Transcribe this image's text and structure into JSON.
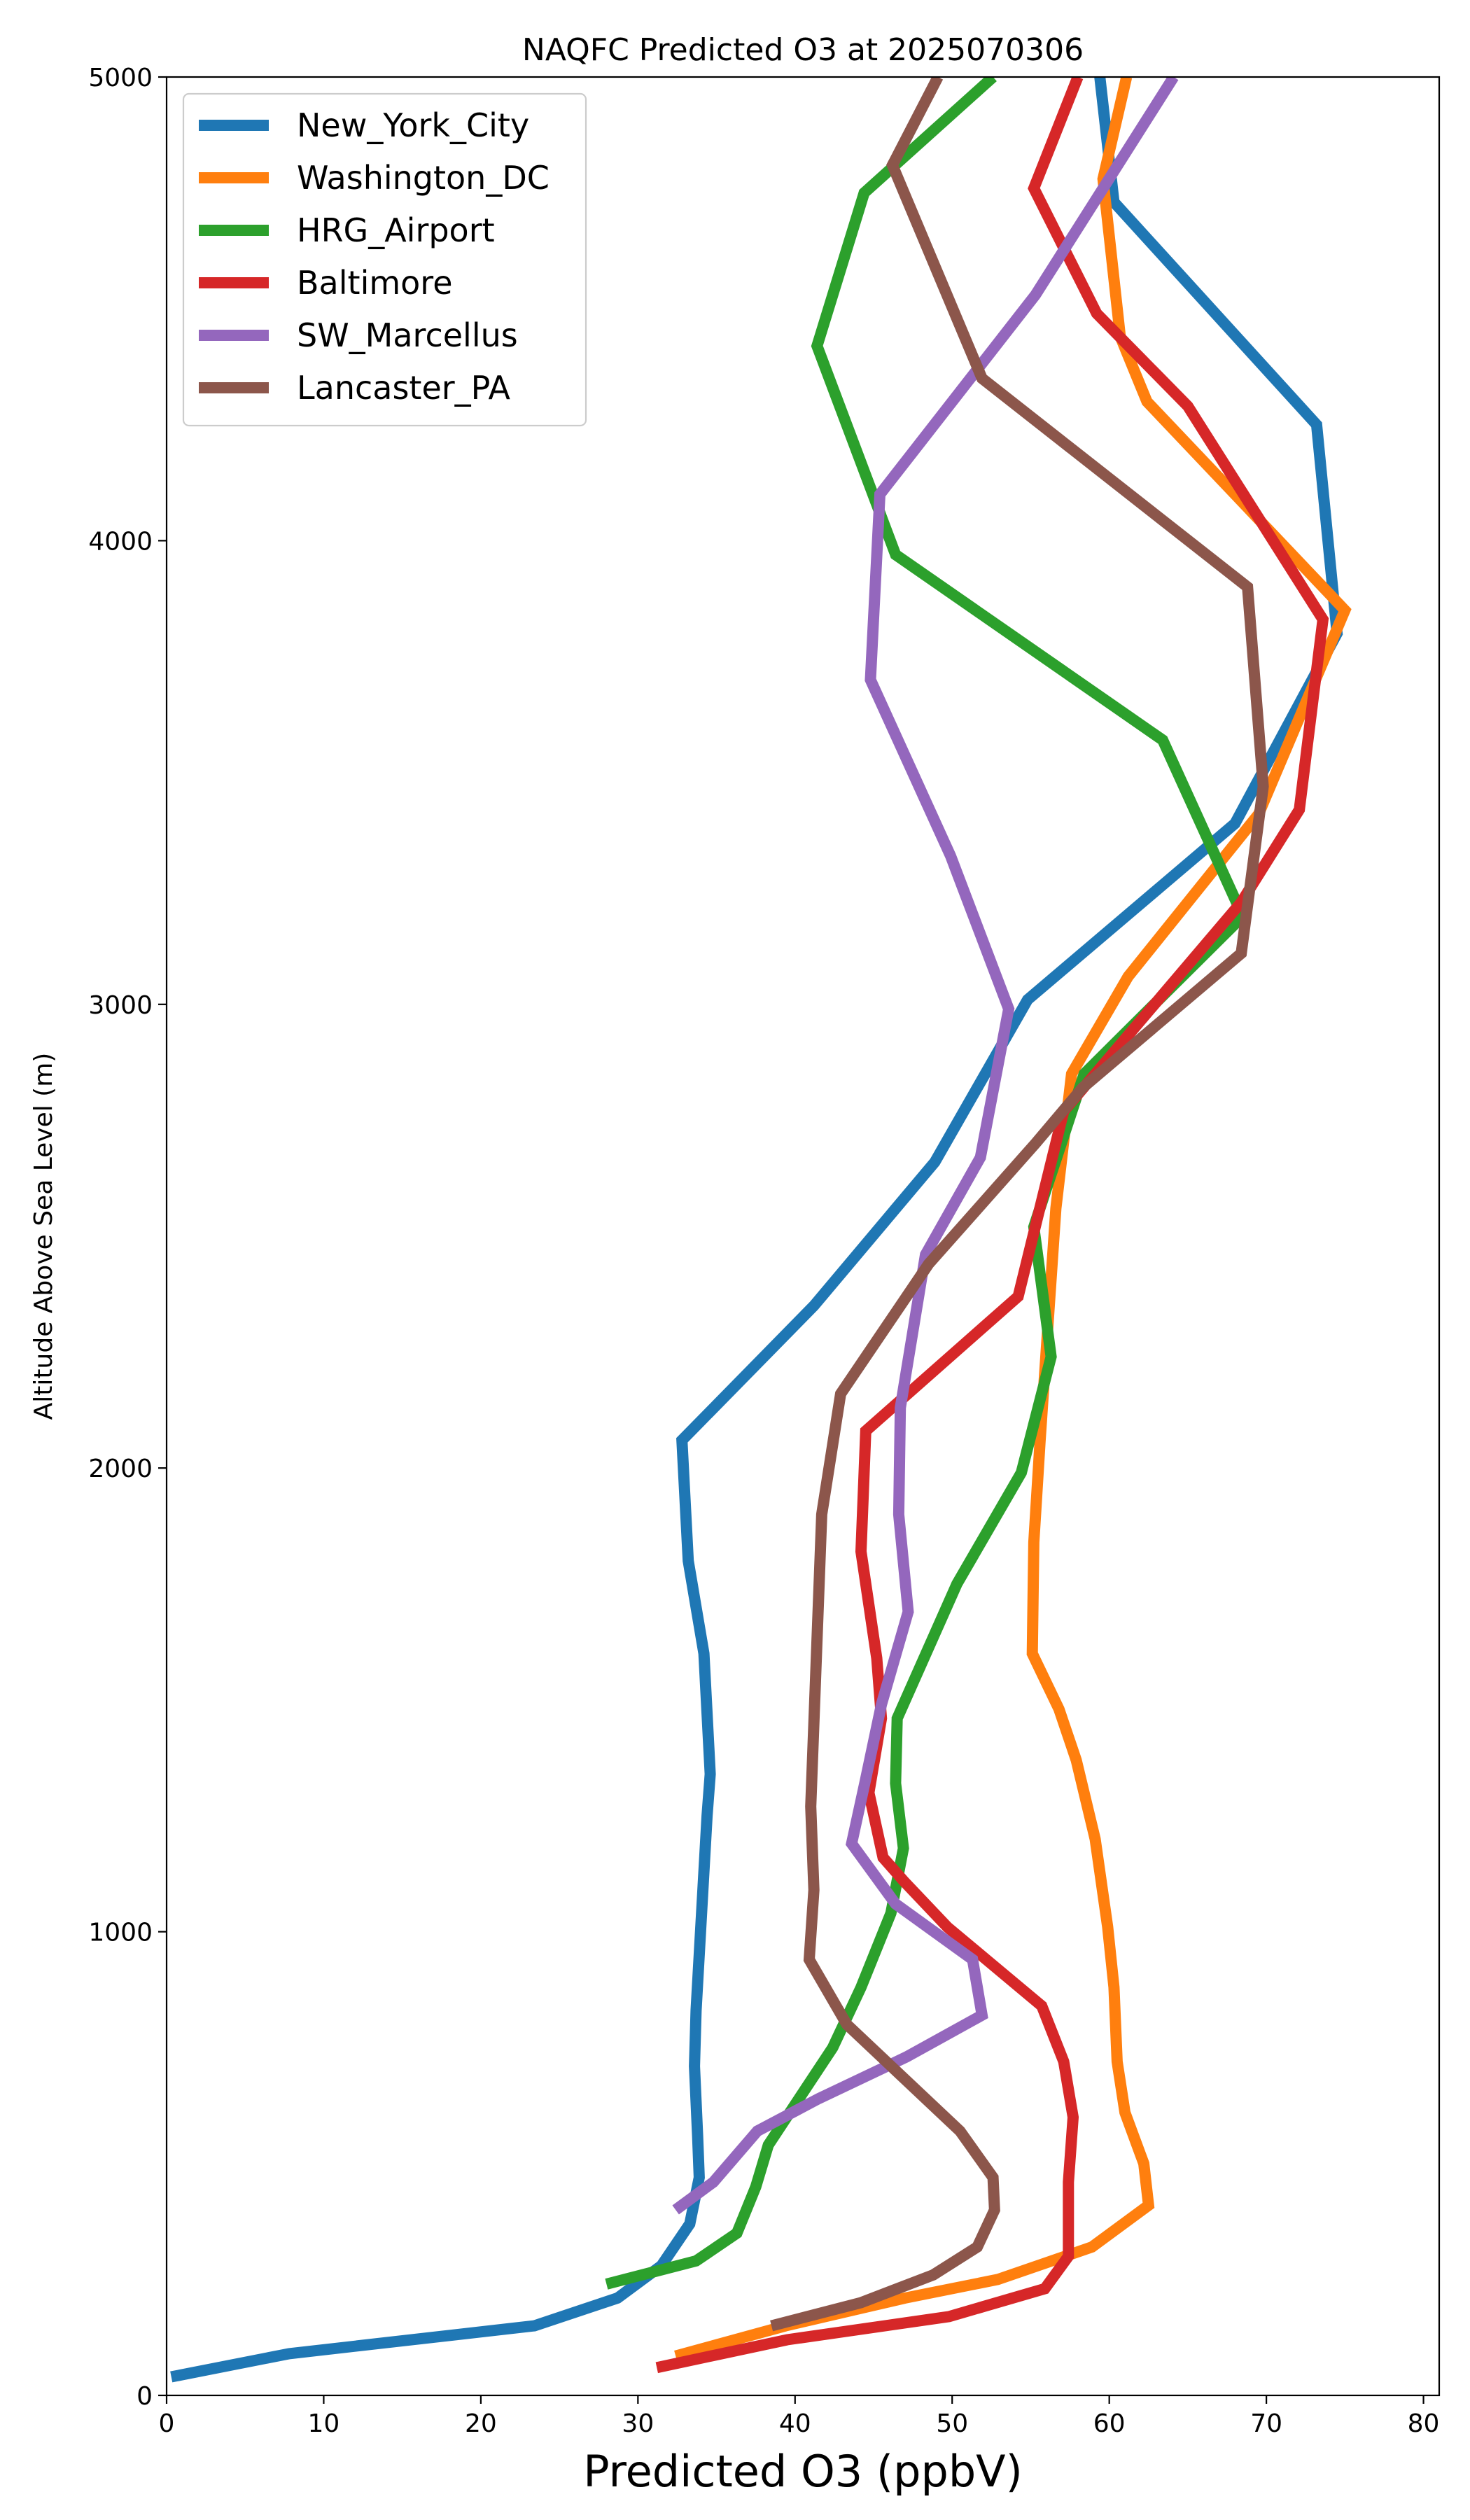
{
  "chart_data": {
    "type": "line",
    "title": "NAQFC Predicted O3 at 2025070306",
    "xlabel": "Predicted O3 (ppbV)",
    "ylabel": "Altitude Above Sea Level (m)",
    "xlim": [
      0,
      81
    ],
    "ylim": [
      0,
      5000
    ],
    "xticks": [
      0,
      10,
      20,
      30,
      40,
      50,
      60,
      70,
      80
    ],
    "yticks": [
      0,
      1000,
      2000,
      3000,
      4000,
      5000
    ],
    "grid": false,
    "legend_position": "upper-left",
    "series": [
      {
        "name": "New_York_City",
        "color": "#1f77b4",
        "points": [
          [
            0.3,
            40
          ],
          [
            7.8,
            90
          ],
          [
            23.4,
            150
          ],
          [
            28.7,
            210
          ],
          [
            31.5,
            280
          ],
          [
            33.3,
            370
          ],
          [
            33.9,
            470
          ],
          [
            33.8,
            560
          ],
          [
            33.6,
            710
          ],
          [
            33.7,
            830
          ],
          [
            34.4,
            1250
          ],
          [
            34.6,
            1340
          ],
          [
            34.2,
            1600
          ],
          [
            33.2,
            1800
          ],
          [
            32.8,
            2060
          ],
          [
            41.2,
            2350
          ],
          [
            48.9,
            2660
          ],
          [
            54.8,
            3010
          ],
          [
            68.0,
            3390
          ],
          [
            74.5,
            3800
          ],
          [
            73.2,
            4250
          ],
          [
            60.3,
            4730
          ],
          [
            59.4,
            5000
          ]
        ]
      },
      {
        "name": "Washington_DC",
        "color": "#ff7f0e",
        "points": [
          [
            32.4,
            85
          ],
          [
            39.4,
            150
          ],
          [
            47.0,
            210
          ],
          [
            52.9,
            250
          ],
          [
            58.9,
            320
          ],
          [
            62.5,
            410
          ],
          [
            62.2,
            500
          ],
          [
            61.0,
            610
          ],
          [
            60.5,
            720
          ],
          [
            60.3,
            880
          ],
          [
            59.9,
            1010
          ],
          [
            59.1,
            1200
          ],
          [
            57.9,
            1370
          ],
          [
            56.8,
            1480
          ],
          [
            55.1,
            1600
          ],
          [
            55.2,
            1840
          ],
          [
            55.6,
            2060
          ],
          [
            56.6,
            2560
          ],
          [
            57.6,
            2850
          ],
          [
            61.2,
            3060
          ],
          [
            69.5,
            3410
          ],
          [
            75.0,
            3850
          ],
          [
            62.4,
            4300
          ],
          [
            60.7,
            4440
          ],
          [
            59.6,
            4780
          ],
          [
            61.1,
            5000
          ]
        ]
      },
      {
        "name": "HRG_Airport",
        "color": "#2ca02c",
        "points": [
          [
            28.0,
            240
          ],
          [
            33.7,
            290
          ],
          [
            36.3,
            350
          ],
          [
            37.5,
            450
          ],
          [
            38.3,
            540
          ],
          [
            42.4,
            750
          ],
          [
            44.2,
            880
          ],
          [
            46.1,
            1040
          ],
          [
            46.9,
            1180
          ],
          [
            46.4,
            1320
          ],
          [
            46.5,
            1460
          ],
          [
            50.3,
            1750
          ],
          [
            54.4,
            1990
          ],
          [
            56.3,
            2240
          ],
          [
            55.2,
            2520
          ],
          [
            58.4,
            2850
          ],
          [
            68.5,
            3190
          ],
          [
            63.4,
            3570
          ],
          [
            46.4,
            3970
          ],
          [
            41.4,
            4420
          ],
          [
            44.4,
            4750
          ],
          [
            52.6,
            5000
          ]
        ]
      },
      {
        "name": "Baltimore",
        "color": "#d62728",
        "points": [
          [
            31.2,
            60
          ],
          [
            39.5,
            120
          ],
          [
            49.8,
            170
          ],
          [
            55.9,
            230
          ],
          [
            57.4,
            300
          ],
          [
            57.4,
            460
          ],
          [
            57.7,
            600
          ],
          [
            57.1,
            720
          ],
          [
            55.7,
            840
          ],
          [
            49.7,
            1010
          ],
          [
            46.9,
            1110
          ],
          [
            45.6,
            1160
          ],
          [
            44.7,
            1300
          ],
          [
            45.5,
            1460
          ],
          [
            45.2,
            1590
          ],
          [
            44.2,
            1820
          ],
          [
            44.5,
            2080
          ],
          [
            54.2,
            2370
          ],
          [
            57.1,
            2770
          ],
          [
            68.4,
            3220
          ],
          [
            72.1,
            3420
          ],
          [
            73.6,
            3830
          ],
          [
            65.0,
            4290
          ],
          [
            59.2,
            4490
          ],
          [
            55.2,
            4760
          ],
          [
            58.0,
            5000
          ]
        ]
      },
      {
        "name": "SW_Marcellus",
        "color": "#9467bd",
        "points": [
          [
            32.4,
            400
          ],
          [
            34.8,
            460
          ],
          [
            37.6,
            570
          ],
          [
            41.5,
            640
          ],
          [
            47.1,
            730
          ],
          [
            51.9,
            820
          ],
          [
            51.3,
            940
          ],
          [
            46.4,
            1060
          ],
          [
            43.6,
            1190
          ],
          [
            44.5,
            1330
          ],
          [
            45.5,
            1490
          ],
          [
            47.2,
            1690
          ],
          [
            46.6,
            1900
          ],
          [
            46.7,
            2130
          ],
          [
            48.3,
            2460
          ],
          [
            51.8,
            2670
          ],
          [
            53.6,
            2990
          ],
          [
            49.9,
            3320
          ],
          [
            44.8,
            3700
          ],
          [
            45.4,
            4100
          ],
          [
            55.3,
            4530
          ],
          [
            64.1,
            5000
          ]
        ]
      },
      {
        "name": "Lancaster_PA",
        "color": "#8c564b",
        "points": [
          [
            38.5,
            150
          ],
          [
            44.2,
            200
          ],
          [
            48.8,
            260
          ],
          [
            51.6,
            320
          ],
          [
            52.7,
            400
          ],
          [
            52.6,
            470
          ],
          [
            50.5,
            570
          ],
          [
            43.3,
            800
          ],
          [
            40.9,
            940
          ],
          [
            41.2,
            1090
          ],
          [
            41.0,
            1270
          ],
          [
            41.7,
            1900
          ],
          [
            42.9,
            2160
          ],
          [
            48.5,
            2440
          ],
          [
            55.3,
            2700
          ],
          [
            58.3,
            2820
          ],
          [
            68.4,
            3110
          ],
          [
            69.8,
            3470
          ],
          [
            68.8,
            3900
          ],
          [
            51.9,
            4350
          ],
          [
            46.2,
            4810
          ],
          [
            49.1,
            5000
          ]
        ]
      }
    ]
  }
}
